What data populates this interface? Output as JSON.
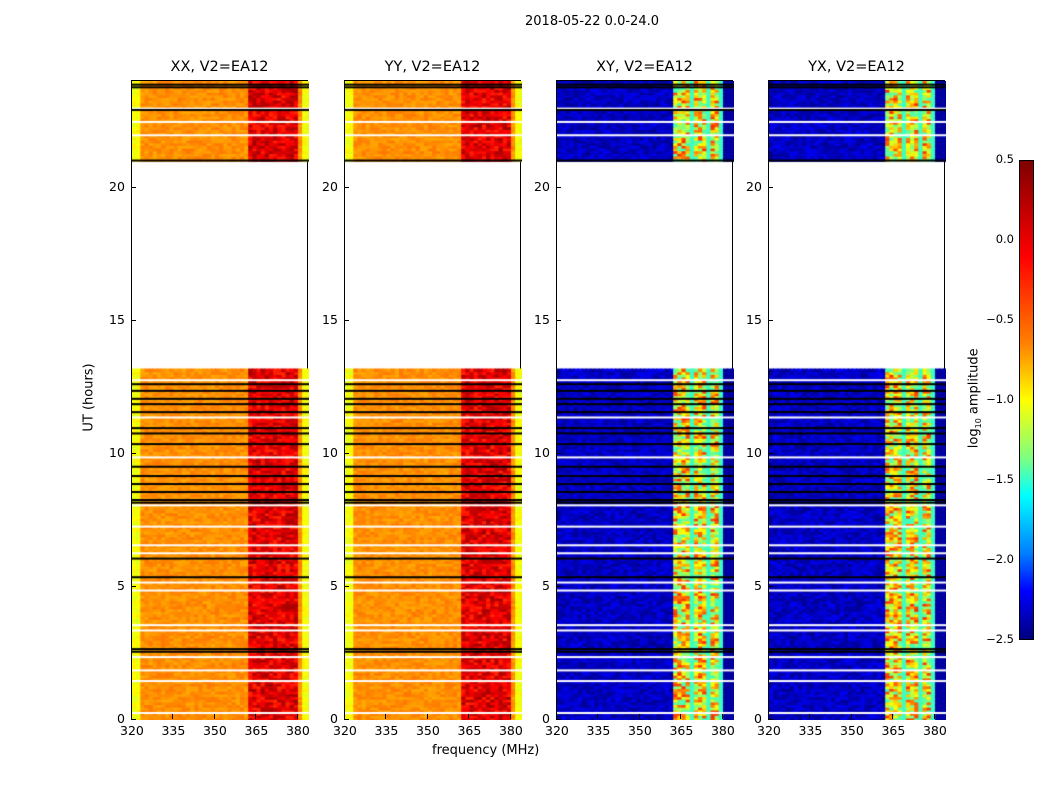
{
  "chart_data": {
    "type": "heatmap",
    "suptitle": "2018-05-22 0.0-24.0",
    "xlabel": "frequency (MHz)",
    "ylabel": "UT (hours)",
    "xlim": [
      320,
      384
    ],
    "ylim": [
      0,
      24
    ],
    "xticks": [
      "320",
      "335",
      "350",
      "365",
      "380"
    ],
    "yticks": [
      "0",
      "5",
      "10",
      "15",
      "20"
    ],
    "panels": [
      {
        "title": "XX, V2=EA12",
        "typical_log10_amplitude": -0.3,
        "rfi_band_log10_amplitude": 0.2
      },
      {
        "title": "YY, V2=EA12",
        "typical_log10_amplitude": -0.3,
        "rfi_band_log10_amplitude": 0.2
      },
      {
        "title": "XY, V2=EA12",
        "typical_log10_amplitude": -2.3,
        "rfi_band_log10_amplitude": -0.6
      },
      {
        "title": "YX, V2=EA12",
        "typical_log10_amplitude": -2.3,
        "rfi_band_log10_amplitude": -0.6
      }
    ],
    "data_time_ranges_hours": [
      [
        0,
        13.1
      ],
      [
        21,
        24
      ]
    ],
    "rfi_band_MHz": [
      362,
      380
    ],
    "colorbar": {
      "label": "log10 amplitude",
      "label_main": "log",
      "label_sub": "10",
      "label_rest": " amplitude",
      "range": [
        -2.5,
        0.5
      ],
      "ticks": [
        "0.5",
        "0.0",
        "−0.5",
        "−1.0",
        "−1.5",
        "−2.0",
        "−2.5"
      ],
      "colormap": "jet"
    }
  }
}
